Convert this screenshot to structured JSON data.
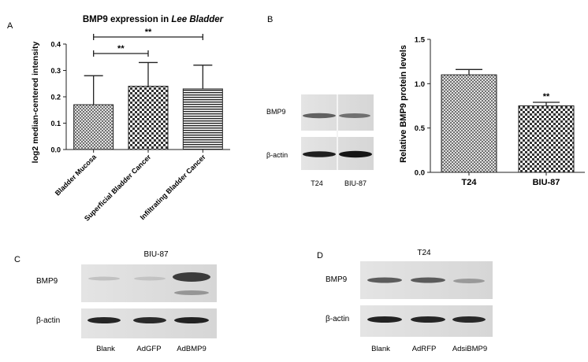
{
  "panels": {
    "A": "A",
    "B": "B",
    "C": "C",
    "D": "D"
  },
  "chart_data": [
    {
      "type": "bar",
      "title_prefix": "BMP9 expression in ",
      "title_italic": "Lee Bladder",
      "categories": [
        "Bladder Mucosa",
        "Superficial Bladder Cancer",
        "Infiltrating Bladder Cancer"
      ],
      "values": [
        0.17,
        0.24,
        0.23
      ],
      "errors": [
        0.11,
        0.09,
        0.09
      ],
      "ylabel": "log2 median-centered intensity",
      "ylim": [
        0,
        0.4
      ],
      "yticks": [
        "0.0",
        "0.1",
        "0.2",
        "0.3",
        "0.4"
      ],
      "significance": [
        {
          "between": [
            0,
            1
          ],
          "label": "**"
        },
        {
          "between": [
            0,
            2
          ],
          "label": "**"
        }
      ],
      "patterns": [
        "crosshatch",
        "checker",
        "horizontal-lines"
      ]
    },
    {
      "type": "bar",
      "categories": [
        "T24",
        "BIU-87"
      ],
      "values": [
        1.1,
        0.75
      ],
      "errors": [
        0.06,
        0.04
      ],
      "ylabel": "Relative BMP9 protein levels",
      "ylim": [
        0,
        1.5
      ],
      "yticks": [
        "0.0",
        "0.5",
        "1.0",
        "1.5"
      ],
      "annotations": [
        {
          "category": 1,
          "label": "**"
        }
      ],
      "patterns": [
        "crosshatch",
        "checker"
      ]
    }
  ],
  "blots": {
    "B": {
      "rows": [
        "BMP9",
        "β-actin"
      ],
      "lanes": [
        "T24",
        "BIU-87"
      ]
    },
    "C": {
      "title": "BIU-87",
      "rows": [
        "BMP9",
        "β-actin"
      ],
      "lanes": [
        "Blank",
        "AdGFP",
        "AdBMP9"
      ]
    },
    "D": {
      "title": "T24",
      "rows": [
        "BMP9",
        "β-actin"
      ],
      "lanes": [
        "Blank",
        "AdRFP",
        "AdsiBMP9"
      ]
    }
  }
}
